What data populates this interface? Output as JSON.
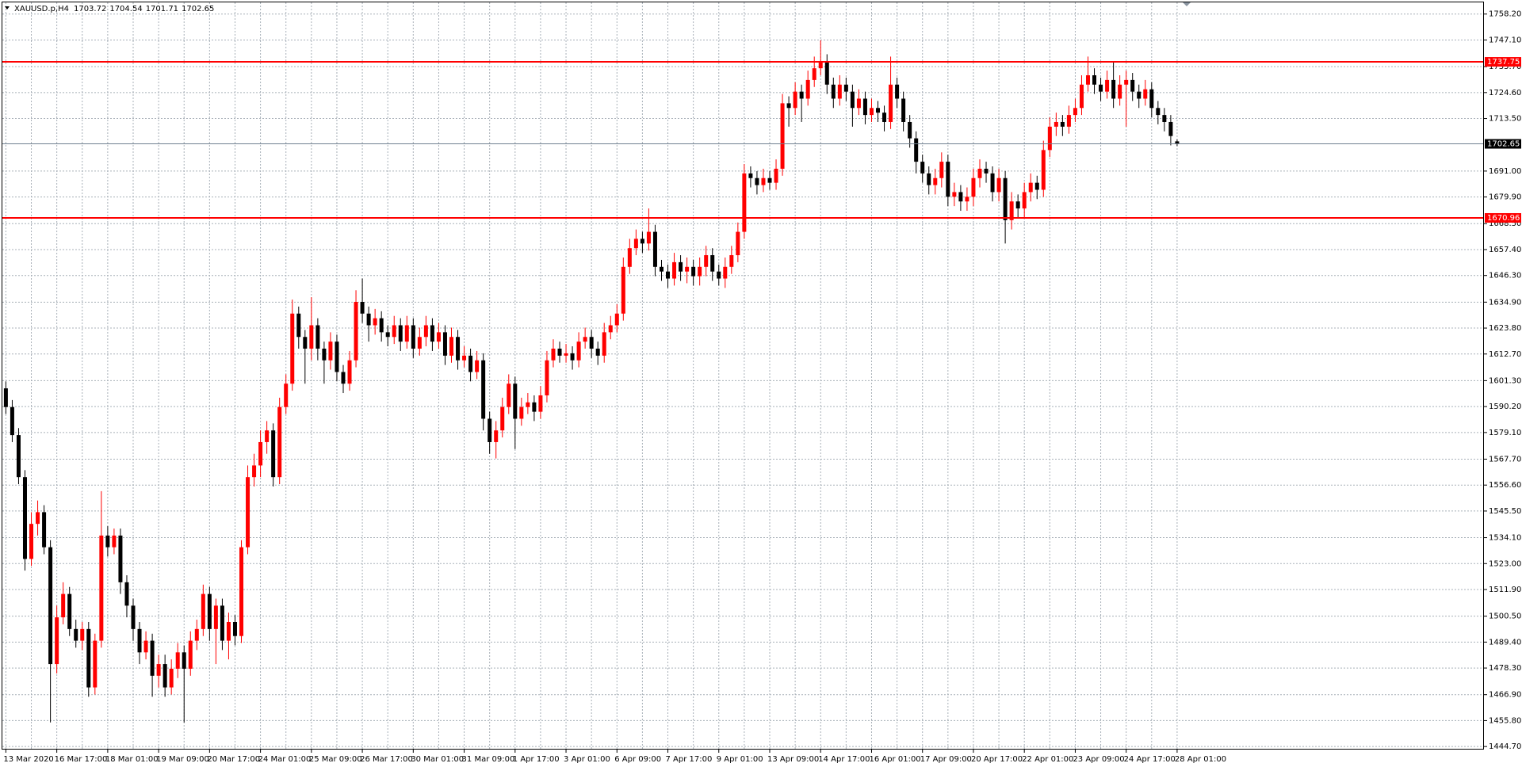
{
  "chart_data": {
    "type": "candlestick",
    "symbol": "XAUUSD.p,H4",
    "x": [
      "13 Mar 2020",
      null,
      null,
      null,
      null,
      null,
      null,
      null,
      "16 Mar 17:00",
      null,
      null,
      null,
      null,
      null,
      null,
      null,
      "18 Mar 01:00",
      null,
      null,
      null,
      null,
      null,
      null,
      null,
      "19 Mar 09:00",
      null,
      null,
      null,
      null,
      null,
      null,
      null,
      "20 Mar 17:00",
      null,
      null,
      null,
      null,
      null,
      null,
      null,
      "24 Mar 01:00",
      null,
      null,
      null,
      null,
      null,
      null,
      null,
      "25 Mar 09:00",
      null,
      null,
      null,
      null,
      null,
      null,
      null,
      "26 Mar 17:00",
      null,
      null,
      null,
      null,
      null,
      null,
      null,
      "30 Mar 01:00",
      null,
      null,
      null,
      null,
      null,
      null,
      null,
      "31 Mar 09:00",
      null,
      null,
      null,
      null,
      null,
      null,
      null,
      "1 Apr 17:00",
      null,
      null,
      null,
      null,
      null,
      null,
      null,
      "3 Apr 01:00",
      null,
      null,
      null,
      null,
      null,
      null,
      null,
      "6 Apr 09:00",
      null,
      null,
      null,
      null,
      null,
      null,
      null,
      "7 Apr 17:00",
      null,
      null,
      null,
      null,
      null,
      null,
      null,
      "9 Apr 01:00",
      null,
      null,
      null,
      null,
      null,
      null,
      null,
      "13 Apr 09:00",
      null,
      null,
      null,
      null,
      null,
      null,
      null,
      "14 Apr 17:00",
      null,
      null,
      null,
      null,
      null,
      null,
      null,
      "16 Apr 01:00",
      null,
      null,
      null,
      null,
      null,
      null,
      null,
      "17 Apr 09:00",
      null,
      null,
      null,
      null,
      null,
      null,
      null,
      "20 Apr 17:00",
      null,
      null,
      null,
      null,
      null,
      null,
      null,
      "22 Apr 01:00",
      null,
      null,
      null,
      null,
      null,
      null,
      null,
      "23 Apr 09:00",
      null,
      null,
      null,
      null,
      null,
      null,
      null,
      "24 Apr 17:00",
      null,
      null,
      null,
      null,
      null,
      null,
      null,
      "28 Apr 01:00"
    ],
    "open": [
      1598,
      1590,
      1578,
      1560,
      1525,
      1540,
      1545,
      1530,
      1480,
      1500,
      1510,
      1495,
      1490,
      1495,
      1470,
      1490,
      1535,
      1530,
      1535,
      1515,
      1505,
      1495,
      1485,
      1490,
      1475,
      1480,
      1470,
      1478,
      1485,
      1478,
      1490,
      1495,
      1510,
      1495,
      1505,
      1490,
      1498,
      1492,
      1530,
      1560,
      1565,
      1575,
      1580,
      1560,
      1590,
      1600,
      1630,
      1620,
      1615,
      1625,
      1615,
      1610,
      1618,
      1605,
      1600,
      1610,
      1635,
      1630,
      1625,
      1628,
      1622,
      1620,
      1625,
      1618,
      1625,
      1615,
      1620,
      1625,
      1618,
      1622,
      1612,
      1620,
      1610,
      1612,
      1605,
      1610,
      1585,
      1575,
      1580,
      1590,
      1600,
      1585,
      1590,
      1592,
      1588,
      1595,
      1610,
      1615,
      1612,
      1613,
      1610,
      1618,
      1620,
      1615,
      1612,
      1622,
      1625,
      1630,
      1650,
      1658,
      1662,
      1660,
      1665,
      1650,
      1648,
      1645,
      1652,
      1648,
      1650,
      1646,
      1650,
      1655,
      1648,
      1645,
      1650,
      1655,
      1665,
      1690,
      1688,
      1685,
      1688,
      1686,
      1692,
      1720,
      1718,
      1725,
      1722,
      1730,
      1735,
      1738,
      1728,
      1722,
      1728,
      1725,
      1718,
      1722,
      1715,
      1718,
      1716,
      1712,
      1728,
      1722,
      1712,
      1705,
      1695,
      1690,
      1685,
      1688,
      1695,
      1680,
      1682,
      1678,
      1680,
      1688,
      1692,
      1690,
      1682,
      1688,
      1670,
      1678,
      1675,
      1682,
      1686,
      1683,
      1700,
      1710,
      1712,
      1710,
      1715,
      1718,
      1728,
      1732,
      1728,
      1725,
      1730,
      1722,
      1728,
      1730,
      1725,
      1722,
      1726,
      1718,
      1715,
      1712,
      1703.72
    ],
    "high": [
      1601,
      1593,
      1581,
      1563,
      1545,
      1550,
      1548,
      1533,
      1505,
      1515,
      1513,
      1499,
      1498,
      1498,
      1493,
      1554,
      1539,
      1538,
      1538,
      1518,
      1508,
      1498,
      1494,
      1493,
      1484,
      1484,
      1482,
      1489,
      1488,
      1494,
      1499,
      1514,
      1513,
      1508,
      1508,
      1502,
      1501,
      1533,
      1565,
      1570,
      1580,
      1584,
      1583,
      1594,
      1604,
      1636,
      1633,
      1623,
      1637,
      1628,
      1618,
      1622,
      1621,
      1608,
      1614,
      1640,
      1645,
      1633,
      1632,
      1631,
      1625,
      1629,
      1628,
      1629,
      1628,
      1624,
      1629,
      1628,
      1626,
      1625,
      1624,
      1623,
      1616,
      1615,
      1614,
      1613,
      1588,
      1584,
      1594,
      1604,
      1603,
      1594,
      1596,
      1595,
      1599,
      1614,
      1619,
      1618,
      1617,
      1616,
      1622,
      1624,
      1623,
      1618,
      1626,
      1629,
      1634,
      1654,
      1662,
      1666,
      1665,
      1675,
      1668,
      1653,
      1651,
      1656,
      1655,
      1654,
      1653,
      1654,
      1659,
      1658,
      1651,
      1654,
      1659,
      1669,
      1694,
      1693,
      1691,
      1692,
      1691,
      1696,
      1724,
      1723,
      1729,
      1728,
      1734,
      1740,
      1747,
      1741,
      1731,
      1732,
      1731,
      1728,
      1726,
      1725,
      1722,
      1721,
      1719,
      1740,
      1731,
      1725,
      1715,
      1708,
      1698,
      1693,
      1692,
      1699,
      1698,
      1686,
      1685,
      1684,
      1692,
      1696,
      1695,
      1693,
      1692,
      1691,
      1682,
      1681,
      1686,
      1690,
      1689,
      1704,
      1714,
      1716,
      1715,
      1719,
      1722,
      1732,
      1740,
      1735,
      1731,
      1734,
      1738,
      1732,
      1734,
      1733,
      1728,
      1730,
      1729,
      1721,
      1718,
      1715,
      1704.54
    ],
    "low": [
      1587,
      1575,
      1557,
      1520,
      1522,
      1535,
      1527,
      1455,
      1476,
      1497,
      1492,
      1487,
      1486,
      1466,
      1467,
      1487,
      1526,
      1527,
      1510,
      1500,
      1490,
      1480,
      1482,
      1466,
      1470,
      1466,
      1467,
      1474,
      1455,
      1475,
      1486,
      1492,
      1490,
      1480,
      1486,
      1482,
      1488,
      1489,
      1527,
      1556,
      1560,
      1570,
      1556,
      1557,
      1587,
      1597,
      1615,
      1600,
      1610,
      1610,
      1600,
      1606,
      1601,
      1596,
      1597,
      1607,
      1626,
      1618,
      1621,
      1618,
      1616,
      1617,
      1614,
      1615,
      1611,
      1612,
      1616,
      1614,
      1615,
      1608,
      1609,
      1606,
      1607,
      1601,
      1602,
      1580,
      1570,
      1568,
      1577,
      1587,
      1572,
      1582,
      1587,
      1584,
      1585,
      1592,
      1607,
      1609,
      1609,
      1606,
      1607,
      1615,
      1611,
      1608,
      1609,
      1619,
      1622,
      1627,
      1647,
      1655,
      1656,
      1657,
      1646,
      1644,
      1641,
      1642,
      1644,
      1643,
      1642,
      1642,
      1646,
      1644,
      1642,
      1641,
      1647,
      1652,
      1662,
      1684,
      1681,
      1682,
      1683,
      1683,
      1689,
      1710,
      1715,
      1712,
      1719,
      1727,
      1732,
      1724,
      1718,
      1719,
      1721,
      1710,
      1715,
      1711,
      1712,
      1712,
      1708,
      1709,
      1718,
      1708,
      1701,
      1690,
      1686,
      1681,
      1681,
      1684,
      1676,
      1676,
      1674,
      1674,
      1676,
      1684,
      1686,
      1678,
      1678,
      1660,
      1666,
      1671,
      1671,
      1678,
      1679,
      1680,
      1697,
      1706,
      1706,
      1707,
      1712,
      1715,
      1725,
      1724,
      1721,
      1722,
      1718,
      1719,
      1710,
      1721,
      1718,
      1719,
      1714,
      1711,
      1708,
      1702,
      1701.71
    ],
    "close": [
      1590,
      1578,
      1560,
      1525,
      1540,
      1545,
      1530,
      1480,
      1500,
      1510,
      1495,
      1490,
      1495,
      1470,
      1490,
      1535,
      1530,
      1535,
      1515,
      1505,
      1495,
      1485,
      1490,
      1475,
      1480,
      1470,
      1478,
      1485,
      1478,
      1490,
      1495,
      1510,
      1495,
      1505,
      1490,
      1498,
      1492,
      1530,
      1560,
      1565,
      1575,
      1580,
      1560,
      1590,
      1600,
      1630,
      1620,
      1615,
      1625,
      1615,
      1610,
      1618,
      1605,
      1600,
      1610,
      1635,
      1630,
      1625,
      1628,
      1622,
      1620,
      1625,
      1618,
      1625,
      1615,
      1620,
      1625,
      1618,
      1622,
      1612,
      1620,
      1610,
      1612,
      1605,
      1610,
      1585,
      1575,
      1580,
      1590,
      1600,
      1585,
      1590,
      1592,
      1588,
      1595,
      1610,
      1615,
      1612,
      1613,
      1610,
      1618,
      1620,
      1615,
      1612,
      1622,
      1625,
      1630,
      1650,
      1658,
      1662,
      1660,
      1665,
      1650,
      1648,
      1645,
      1652,
      1648,
      1650,
      1646,
      1650,
      1655,
      1648,
      1645,
      1650,
      1655,
      1665,
      1690,
      1688,
      1685,
      1688,
      1686,
      1692,
      1720,
      1718,
      1725,
      1722,
      1730,
      1735,
      1738,
      1728,
      1722,
      1728,
      1725,
      1718,
      1722,
      1715,
      1718,
      1716,
      1712,
      1728,
      1722,
      1712,
      1705,
      1695,
      1690,
      1685,
      1688,
      1695,
      1680,
      1682,
      1678,
      1680,
      1688,
      1692,
      1690,
      1682,
      1688,
      1670,
      1678,
      1675,
      1682,
      1686,
      1683,
      1700,
      1710,
      1712,
      1710,
      1715,
      1718,
      1728,
      1732,
      1728,
      1725,
      1730,
      1722,
      1728,
      1730,
      1725,
      1722,
      1726,
      1718,
      1715,
      1712,
      1706,
      1702.65
    ],
    "up_color": "#ff0000",
    "down_color": "#000000",
    "grid": true,
    "ylim": [
      1443.4,
      1763.2
    ],
    "yticks": [
      {
        "value": 1758.2,
        "label": "1758.20"
      },
      {
        "value": 1747.1,
        "label": "1747.10"
      },
      {
        "value": 1735.7,
        "label": "1735.70"
      },
      {
        "value": 1724.6,
        "label": "1724.60"
      },
      {
        "value": 1713.5,
        "label": "1713.50"
      },
      {
        "value": 1691,
        "label": "1691.00"
      },
      {
        "value": 1679.9,
        "label": "1679.90"
      },
      {
        "value": 1668.5,
        "label": "1668.50"
      },
      {
        "value": 1657.4,
        "label": "1657.40"
      },
      {
        "value": 1646.3,
        "label": "1646.30"
      },
      {
        "value": 1634.9,
        "label": "1634.90"
      },
      {
        "value": 1623.8,
        "label": "1623.80"
      },
      {
        "value": 1612.7,
        "label": "1612.70"
      },
      {
        "value": 1601.3,
        "label": "1601.30"
      },
      {
        "value": 1590.2,
        "label": "1590.20"
      },
      {
        "value": 1579.1,
        "label": "1579.10"
      },
      {
        "value": 1567.7,
        "label": "1567.70"
      },
      {
        "value": 1556.6,
        "label": "1556.60"
      },
      {
        "value": 1545.5,
        "label": "1545.50"
      },
      {
        "value": 1534.1,
        "label": "1534.10"
      },
      {
        "value": 1523,
        "label": "1523.00"
      },
      {
        "value": 1511.9,
        "label": "1511.90"
      },
      {
        "value": 1500.5,
        "label": "1500.50"
      },
      {
        "value": 1489.4,
        "label": "1489.40"
      },
      {
        "value": 1478.3,
        "label": "1478.30"
      },
      {
        "value": 1466.9,
        "label": "1466.90"
      },
      {
        "value": 1455.8,
        "label": "1455.80"
      },
      {
        "value": 1444.7,
        "label": "1444.70"
      }
    ],
    "hlines": [
      {
        "value": 1737.75,
        "color": "#ff0000"
      },
      {
        "value": 1670.96,
        "color": "#ff0000"
      }
    ],
    "bid_color": "#708090"
  }
}
